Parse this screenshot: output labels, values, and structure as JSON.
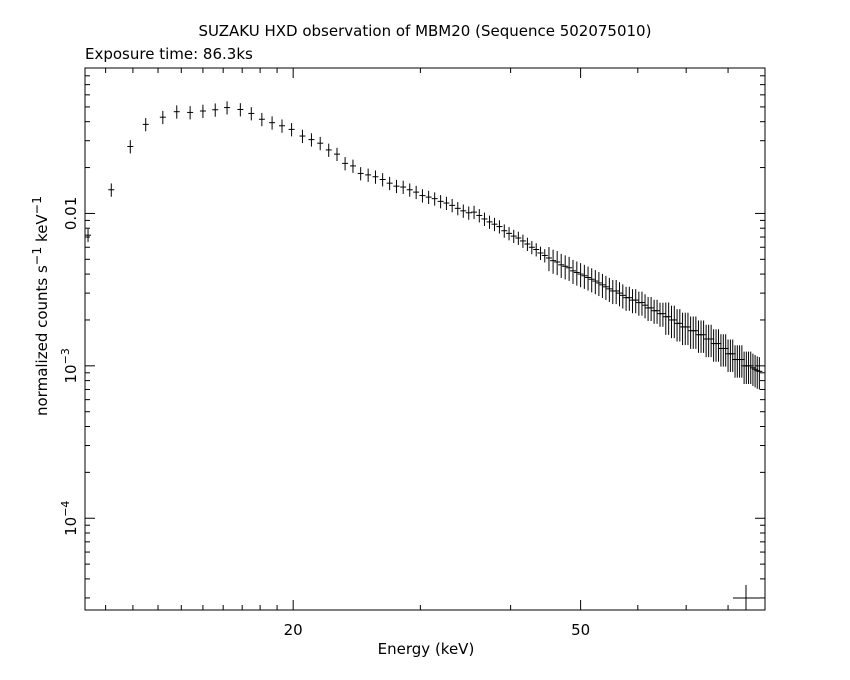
{
  "chart_data": {
    "type": "scatter",
    "title": "SUZAKU HXD observation of MBM20 (Sequence 502075010)",
    "subtitle": "Exposure time: 86.3ks",
    "xlabel": "Energy (keV)",
    "ylabel_text": "normalized counts s",
    "ylabel_sup1": "−1",
    "ylabel_mid": " keV",
    "ylabel_sup2": "−1",
    "x_scale": "log",
    "y_scale": "log",
    "xlim": [
      10.3,
      90
    ],
    "ylim": [
      2.5e-05,
      0.09
    ],
    "x_ticks": [
      {
        "value": 20,
        "label": "20"
      },
      {
        "value": 50,
        "label": "50"
      }
    ],
    "y_ticks": [
      {
        "value": 0.01,
        "label": "0.01",
        "base": "",
        "exp": ""
      },
      {
        "value": 0.001,
        "label": "",
        "base": "10",
        "exp": "−3"
      },
      {
        "value": 0.0001,
        "label": "",
        "base": "10",
        "exp": "−4"
      }
    ],
    "points": [
      [
        10.4,
        0.0072
      ],
      [
        11.2,
        0.0143
      ],
      [
        11.9,
        0.0275
      ],
      [
        12.5,
        0.0384
      ],
      [
        13.2,
        0.0428
      ],
      [
        13.8,
        0.0465
      ],
      [
        14.4,
        0.046
      ],
      [
        15.0,
        0.047
      ],
      [
        15.6,
        0.0479
      ],
      [
        16.2,
        0.0495
      ],
      [
        16.9,
        0.0481
      ],
      [
        17.5,
        0.0453
      ],
      [
        18.1,
        0.0415
      ],
      [
        18.7,
        0.0394
      ],
      [
        19.3,
        0.0376
      ],
      [
        19.9,
        0.0356
      ],
      [
        20.6,
        0.0322
      ],
      [
        21.2,
        0.0305
      ],
      [
        21.8,
        0.0289
      ],
      [
        22.4,
        0.0261
      ],
      [
        23.0,
        0.0245
      ],
      [
        23.6,
        0.0213
      ],
      [
        24.2,
        0.0205
      ],
      [
        24.8,
        0.0183
      ],
      [
        25.4,
        0.0179
      ],
      [
        26.0,
        0.0174
      ],
      [
        26.6,
        0.0167
      ],
      [
        27.2,
        0.0158
      ],
      [
        27.8,
        0.0151
      ],
      [
        28.4,
        0.0149
      ],
      [
        29.0,
        0.0143
      ],
      [
        29.6,
        0.0138
      ],
      [
        30.2,
        0.0131
      ],
      [
        30.8,
        0.0128
      ],
      [
        31.4,
        0.0125
      ],
      [
        32.0,
        0.012
      ],
      [
        32.6,
        0.0117
      ],
      [
        33.2,
        0.0113
      ],
      [
        33.8,
        0.0108
      ],
      [
        34.4,
        0.0104
      ],
      [
        35.0,
        0.0101
      ],
      [
        35.6,
        0.0102
      ],
      [
        36.2,
        0.0097
      ],
      [
        36.8,
        0.0092
      ],
      [
        37.4,
        0.0088
      ],
      [
        38.0,
        0.0085
      ],
      [
        38.6,
        0.0082
      ],
      [
        39.2,
        0.0077
      ],
      [
        39.8,
        0.0074
      ],
      [
        40.4,
        0.0071
      ],
      [
        41.0,
        0.0069
      ],
      [
        41.6,
        0.0066
      ],
      [
        42.2,
        0.0063
      ],
      [
        42.8,
        0.006
      ],
      [
        43.4,
        0.0058
      ],
      [
        44.0,
        0.0055
      ],
      [
        44.6,
        0.0053
      ],
      [
        45.2,
        0.0051
      ],
      [
        45.8,
        0.0049
      ],
      [
        46.4,
        0.0048
      ],
      [
        47.0,
        0.0046
      ],
      [
        47.6,
        0.0045
      ],
      [
        48.2,
        0.0044
      ],
      [
        48.8,
        0.0042
      ],
      [
        49.4,
        0.0041
      ],
      [
        50.0,
        0.004
      ],
      [
        50.6,
        0.0039
      ],
      [
        51.2,
        0.0038
      ],
      [
        51.8,
        0.0037
      ],
      [
        52.4,
        0.0036
      ],
      [
        53.0,
        0.0035
      ],
      [
        53.6,
        0.0034
      ],
      [
        54.2,
        0.0033
      ],
      [
        54.8,
        0.0032
      ],
      [
        55.4,
        0.0031
      ],
      [
        56.0,
        0.0031
      ],
      [
        56.6,
        0.003
      ],
      [
        57.2,
        0.0029
      ],
      [
        57.8,
        0.0028
      ],
      [
        58.4,
        0.0028
      ],
      [
        59.0,
        0.0027
      ],
      [
        59.6,
        0.0027
      ],
      [
        60.2,
        0.0026
      ],
      [
        60.8,
        0.0026
      ],
      [
        61.4,
        0.0025
      ],
      [
        62.0,
        0.0024
      ],
      [
        62.6,
        0.0024
      ],
      [
        63.2,
        0.0023
      ],
      [
        63.8,
        0.0023
      ],
      [
        64.4,
        0.0022
      ],
      [
        65.0,
        0.0022
      ],
      [
        65.6,
        0.0021
      ],
      [
        66.2,
        0.0021
      ],
      [
        66.8,
        0.002
      ],
      [
        67.4,
        0.002
      ],
      [
        68.0,
        0.0019
      ],
      [
        68.6,
        0.0019
      ],
      [
        69.2,
        0.0018
      ],
      [
        69.8,
        0.0018
      ],
      [
        70.4,
        0.0018
      ],
      [
        71.0,
        0.0017
      ],
      [
        71.6,
        0.0017
      ],
      [
        72.2,
        0.0017
      ],
      [
        72.8,
        0.0016
      ],
      [
        73.4,
        0.0016
      ],
      [
        74.0,
        0.0016
      ],
      [
        74.6,
        0.0015
      ],
      [
        75.2,
        0.0015
      ],
      [
        75.8,
        0.0015
      ],
      [
        76.4,
        0.0014
      ],
      [
        77.0,
        0.0014
      ],
      [
        77.6,
        0.0014
      ],
      [
        78.2,
        0.0013
      ],
      [
        78.8,
        0.0013
      ],
      [
        79.4,
        0.0013
      ],
      [
        80.0,
        0.0012
      ],
      [
        80.6,
        0.0012
      ],
      [
        81.2,
        0.0012
      ],
      [
        81.8,
        0.0011
      ],
      [
        82.4,
        0.0011
      ],
      [
        83.0,
        0.0011
      ],
      [
        83.6,
        0.0011
      ],
      [
        84.2,
        0.001
      ],
      [
        84.8,
        0.001
      ],
      [
        85.4,
        0.001
      ],
      [
        86.0,
        0.001
      ],
      [
        86.6,
        0.00097
      ],
      [
        87.2,
        0.00095
      ],
      [
        87.8,
        0.00093
      ],
      [
        88.4,
        0.00092
      ]
    ],
    "grid": false
  }
}
